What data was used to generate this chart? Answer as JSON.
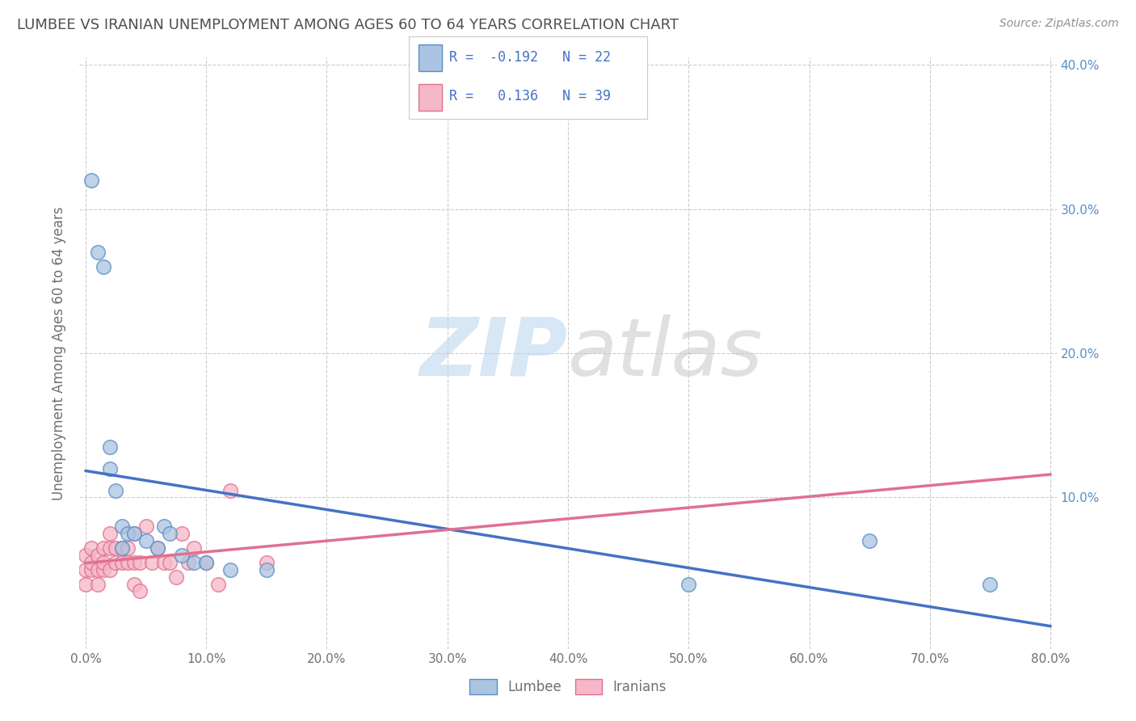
{
  "title": "LUMBEE VS IRANIAN UNEMPLOYMENT AMONG AGES 60 TO 64 YEARS CORRELATION CHART",
  "source": "Source: ZipAtlas.com",
  "ylabel": "Unemployment Among Ages 60 to 64 years",
  "lumbee_R": -0.192,
  "lumbee_N": 22,
  "iranian_R": 0.136,
  "iranian_N": 39,
  "lumbee_color": "#aac4e2",
  "lumbee_edge_color": "#5b8ec4",
  "lumbee_line_color": "#4472c4",
  "iranian_color": "#f5b8c8",
  "iranian_edge_color": "#e07090",
  "iranian_line_color": "#e07090",
  "title_color": "#505050",
  "source_color": "#909090",
  "legend_R_color": "#4472c4",
  "lumbee_x": [
    0.005,
    0.01,
    0.015,
    0.02,
    0.02,
    0.025,
    0.03,
    0.03,
    0.035,
    0.04,
    0.05,
    0.06,
    0.065,
    0.07,
    0.08,
    0.09,
    0.1,
    0.12,
    0.15,
    0.5,
    0.65,
    0.75
  ],
  "lumbee_y": [
    0.32,
    0.27,
    0.26,
    0.12,
    0.135,
    0.105,
    0.08,
    0.065,
    0.075,
    0.075,
    0.07,
    0.065,
    0.08,
    0.075,
    0.06,
    0.055,
    0.055,
    0.05,
    0.05,
    0.04,
    0.07,
    0.04
  ],
  "iranian_x": [
    0.0,
    0.0,
    0.0,
    0.005,
    0.005,
    0.005,
    0.01,
    0.01,
    0.01,
    0.015,
    0.015,
    0.015,
    0.02,
    0.02,
    0.02,
    0.025,
    0.025,
    0.03,
    0.03,
    0.035,
    0.035,
    0.04,
    0.04,
    0.04,
    0.045,
    0.045,
    0.05,
    0.055,
    0.06,
    0.065,
    0.07,
    0.075,
    0.08,
    0.085,
    0.09,
    0.1,
    0.11,
    0.12,
    0.15
  ],
  "iranian_y": [
    0.04,
    0.05,
    0.06,
    0.05,
    0.055,
    0.065,
    0.04,
    0.05,
    0.06,
    0.05,
    0.055,
    0.065,
    0.05,
    0.065,
    0.075,
    0.055,
    0.065,
    0.055,
    0.065,
    0.055,
    0.065,
    0.075,
    0.055,
    0.04,
    0.055,
    0.035,
    0.08,
    0.055,
    0.065,
    0.055,
    0.055,
    0.045,
    0.075,
    0.055,
    0.065,
    0.055,
    0.04,
    0.105,
    0.055
  ],
  "xlim": [
    0.0,
    0.8
  ],
  "ylim": [
    0.0,
    0.4
  ],
  "xticks": [
    0.0,
    0.1,
    0.2,
    0.3,
    0.4,
    0.5,
    0.6,
    0.7,
    0.8
  ],
  "yticks": [
    0.0,
    0.1,
    0.2,
    0.3,
    0.4
  ],
  "xticklabels": [
    "0.0%",
    "10.0%",
    "20.0%",
    "30.0%",
    "40.0%",
    "50.0%",
    "60.0%",
    "70.0%",
    "80.0%"
  ],
  "yticklabels_right": [
    "",
    "10.0%",
    "20.0%",
    "30.0%",
    "40.0%"
  ],
  "background_color": "#ffffff",
  "grid_color": "#cccccc",
  "tick_color": "#707070",
  "right_tick_color": "#5b8ec4"
}
